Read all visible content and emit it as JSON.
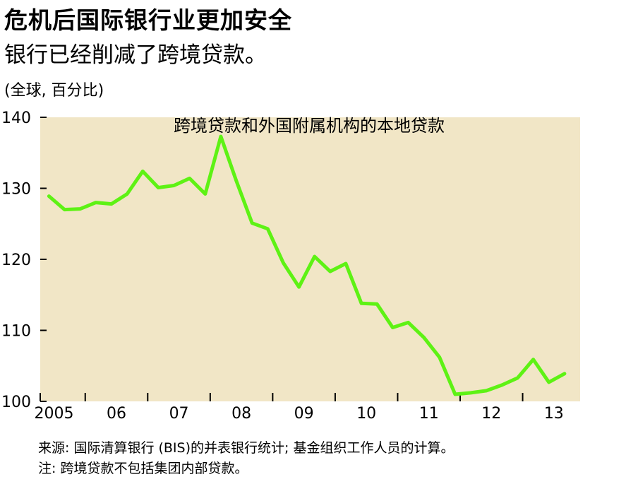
{
  "title": "危机后国际银行业更加安全",
  "subtitle": "银行已经削减了跨境贷款。",
  "unit_label": "(全球, 百分比)",
  "notes": {
    "source": "来源: 国际清算银行 (BIS)的并表银行统计; 基金组织工作人员的计算。",
    "note": "注: 跨境贷款不包括集团内部贷款。"
  },
  "colors": {
    "plot_background": "#f1e6c6",
    "line": "#5ef214"
  },
  "chart_data": {
    "type": "line",
    "title": "危机后国际银行业更加安全",
    "subtitle": "银行已经削减了跨境贷款。",
    "ylabel": "(全球, 百分比)",
    "ylim": [
      100,
      140
    ],
    "yticks": [
      100,
      110,
      120,
      130,
      140
    ],
    "x_categories": [
      "2005",
      "06",
      "07",
      "08",
      "09",
      "10",
      "11",
      "12",
      "13"
    ],
    "grid": false,
    "series": [
      {
        "name": "跨境贷款和外国附属机构的本地贷款",
        "color": "#5ef214",
        "x": [
          2005.0,
          2005.25,
          2005.5,
          2005.75,
          2006.0,
          2006.25,
          2006.5,
          2006.75,
          2007.0,
          2007.25,
          2007.5,
          2007.75,
          2008.0,
          2008.25,
          2008.5,
          2008.75,
          2009.0,
          2009.25,
          2009.5,
          2009.75,
          2010.0,
          2010.25,
          2010.5,
          2010.75,
          2011.0,
          2011.25,
          2011.5,
          2011.75,
          2012.0,
          2012.25,
          2012.5,
          2012.75,
          2013.0,
          2013.25
        ],
        "values": [
          128.9,
          127.0,
          127.1,
          128.0,
          127.8,
          129.2,
          132.4,
          130.1,
          130.4,
          131.4,
          129.2,
          137.3,
          131.0,
          125.1,
          124.3,
          119.5,
          116.1,
          120.4,
          118.3,
          119.4,
          113.8,
          113.7,
          110.4,
          111.1,
          109.0,
          106.2,
          101.0,
          101.2,
          101.5,
          102.3,
          103.3,
          105.9,
          102.7,
          103.9
        ]
      }
    ]
  }
}
